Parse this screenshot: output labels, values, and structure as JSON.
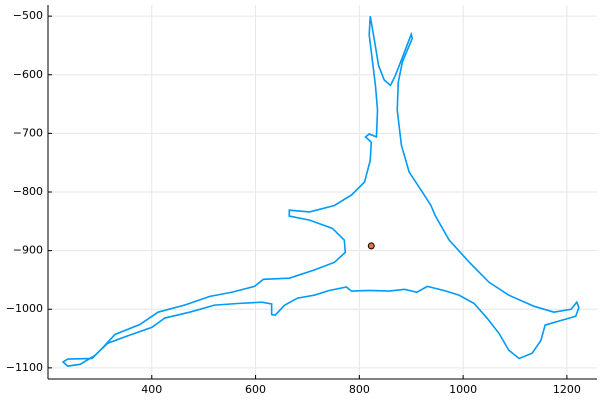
{
  "chart_data": {
    "type": "line",
    "xlim": [
      200,
      1258
    ],
    "ylim": [
      -1119,
      -481
    ],
    "xticks": [
      400,
      600,
      800,
      1000,
      1200
    ],
    "yticks": [
      {
        "value": -500,
        "label": "−500"
      },
      {
        "value": -600,
        "label": "−600"
      },
      {
        "value": -700,
        "label": "−700"
      },
      {
        "value": -800,
        "label": "−800"
      },
      {
        "value": -900,
        "label": "−900"
      },
      {
        "value": -1000,
        "label": "−1000"
      },
      {
        "value": -1100,
        "label": "−1100"
      }
    ],
    "grid": true,
    "series": [
      {
        "type": "line",
        "color": "#009af9",
        "x": [
          821,
          829,
          837,
          848,
          860,
          869,
          881,
          900,
          902,
          883,
          875,
          873,
          881,
          896,
          919,
          938,
          946,
          973,
          1012,
          1050,
          1088,
          1137,
          1175,
          1208,
          1219,
          1223,
          1217,
          1185,
          1158,
          1150,
          1133,
          1108,
          1088,
          1069,
          1046,
          1021,
          992,
          963,
          931,
          911,
          887,
          858,
          819,
          785,
          775,
          742,
          713,
          681,
          656,
          638,
          631,
          631,
          612,
          569,
          521,
          473,
          425,
          400,
          358,
          315,
          290,
          262,
          238,
          229,
          238,
          285,
          304,
          329,
          377,
          412,
          463,
          512,
          554,
          598,
          615,
          665,
          713,
          752,
          773,
          771,
          748,
          704,
          665,
          665,
          704,
          752,
          785,
          810,
          821,
          823,
          812,
          819,
          833,
          835,
          831,
          825,
          819,
          821
        ],
        "y": [
          -500,
          -541,
          -584,
          -609,
          -618,
          -602,
          -575,
          -531,
          -538,
          -578,
          -613,
          -660,
          -720,
          -766,
          -797,
          -823,
          -840,
          -882,
          -920,
          -954,
          -976,
          -995,
          -1005,
          -1000,
          -988,
          -997,
          -1012,
          -1020,
          -1027,
          -1053,
          -1075,
          -1084,
          -1070,
          -1041,
          -1015,
          -990,
          -976,
          -968,
          -961,
          -971,
          -966,
          -969,
          -968,
          -969,
          -962,
          -968,
          -976,
          -981,
          -993,
          -1010,
          -1009,
          -991,
          -988,
          -990,
          -993,
          -1005,
          -1015,
          -1031,
          -1044,
          -1058,
          -1079,
          -1094,
          -1097,
          -1090,
          -1085,
          -1084,
          -1067,
          -1043,
          -1026,
          -1005,
          -993,
          -978,
          -971,
          -961,
          -949,
          -947,
          -933,
          -920,
          -903,
          -882,
          -862,
          -848,
          -841,
          -831,
          -834,
          -823,
          -805,
          -783,
          -746,
          -715,
          -706,
          -701,
          -706,
          -660,
          -618,
          -575,
          -532,
          -500
        ]
      },
      {
        "type": "scatter",
        "color": "#e26f46",
        "x": [
          823
        ],
        "y": [
          -892
        ]
      }
    ]
  }
}
